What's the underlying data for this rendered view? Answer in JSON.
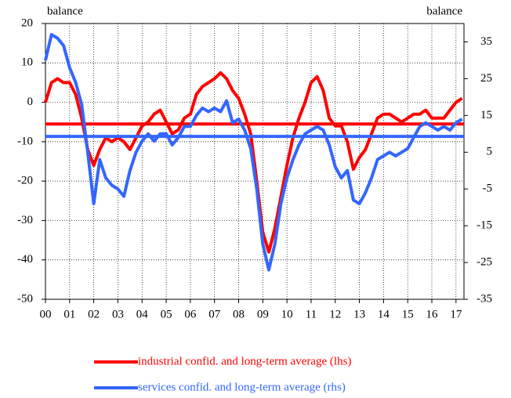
{
  "chart_data": {
    "type": "line",
    "y_label": "balance",
    "y2_label": "balance",
    "x": [
      2000,
      2000.25,
      2000.5,
      2000.75,
      2001,
      2001.25,
      2001.5,
      2001.75,
      2002,
      2002.25,
      2002.5,
      2002.75,
      2003,
      2003.25,
      2003.5,
      2003.75,
      2004,
      2004.25,
      2004.5,
      2004.75,
      2005,
      2005.25,
      2005.5,
      2005.75,
      2006,
      2006.25,
      2006.5,
      2006.75,
      2007,
      2007.25,
      2007.5,
      2007.75,
      2008,
      2008.25,
      2008.5,
      2008.75,
      2009,
      2009.25,
      2009.5,
      2009.75,
      2010,
      2010.25,
      2010.5,
      2010.75,
      2011,
      2011.25,
      2011.5,
      2011.75,
      2012,
      2012.25,
      2012.5,
      2012.75,
      2013,
      2013.25,
      2013.5,
      2013.75,
      2014,
      2014.25,
      2014.5,
      2014.75,
      2015,
      2015.25,
      2015.5,
      2015.75,
      2016,
      2016.25,
      2016.5,
      2016.75,
      2017,
      2017.25
    ],
    "series": [
      {
        "name": "industrial confid. and long-term average (lhs)",
        "color": "#ff0000",
        "axis": "y",
        "average": -5.5,
        "values": [
          0,
          5,
          6,
          5,
          5,
          2,
          -4,
          -12,
          -16,
          -12,
          -9,
          -10,
          -9,
          -10,
          -12,
          -9,
          -6,
          -5,
          -3,
          -2,
          -5,
          -8,
          -7,
          -4,
          -3,
          2,
          4,
          5,
          6,
          7.5,
          6,
          3,
          1,
          -3,
          -8,
          -20,
          -33,
          -38,
          -32,
          -24,
          -16,
          -9,
          -4,
          0,
          5,
          6.5,
          3,
          -4,
          -6,
          -6,
          -10,
          -17,
          -14,
          -12,
          -8,
          -4,
          -3,
          -3,
          -4,
          -5,
          -4,
          -3,
          -3,
          -2,
          -4,
          -4,
          -4,
          -2,
          0,
          1
        ]
      },
      {
        "name": "services confid. and long-term average (rhs)",
        "color": "#3366ff",
        "axis": "y2",
        "average": 9.3,
        "values": [
          30,
          37,
          36,
          34,
          28,
          24,
          18,
          5,
          -9,
          3,
          -2,
          -4,
          -5,
          -7,
          0,
          5,
          8,
          10,
          8,
          10,
          10,
          7,
          9,
          12,
          12,
          15,
          17,
          16,
          17,
          16,
          19,
          13,
          14,
          11,
          6,
          -5,
          -20,
          -27,
          -20,
          -9,
          -2,
          3,
          7,
          10,
          11,
          12,
          11,
          7,
          1,
          -2,
          0,
          -8,
          -9,
          -6,
          -2,
          3,
          4,
          5,
          4,
          5,
          6,
          9,
          12,
          13,
          12,
          11,
          12,
          11,
          13,
          14
        ]
      }
    ],
    "xlim": [
      2000,
      2017.33
    ],
    "xticks": [
      {
        "value": 2000,
        "label": "00"
      },
      {
        "value": 2001,
        "label": "01"
      },
      {
        "value": 2002,
        "label": "02"
      },
      {
        "value": 2003,
        "label": "03"
      },
      {
        "value": 2004,
        "label": "04"
      },
      {
        "value": 2005,
        "label": "05"
      },
      {
        "value": 2006,
        "label": "06"
      },
      {
        "value": 2007,
        "label": "07"
      },
      {
        "value": 2008,
        "label": "08"
      },
      {
        "value": 2009,
        "label": "09"
      },
      {
        "value": 2010,
        "label": "10"
      },
      {
        "value": 2011,
        "label": "11"
      },
      {
        "value": 2012,
        "label": "12"
      },
      {
        "value": 2013,
        "label": "13"
      },
      {
        "value": 2014,
        "label": "14"
      },
      {
        "value": 2015,
        "label": "15"
      },
      {
        "value": 2016,
        "label": "16"
      },
      {
        "value": 2017,
        "label": "17"
      }
    ],
    "ylim": [
      -50,
      20
    ],
    "yticks": [
      -50,
      -40,
      -30,
      -20,
      -10,
      0,
      10,
      20
    ],
    "y2lim": [
      -35,
      40
    ],
    "y2ticks": [
      -35,
      -25,
      -15,
      -5,
      5,
      15,
      25,
      35
    ],
    "grid": true
  }
}
